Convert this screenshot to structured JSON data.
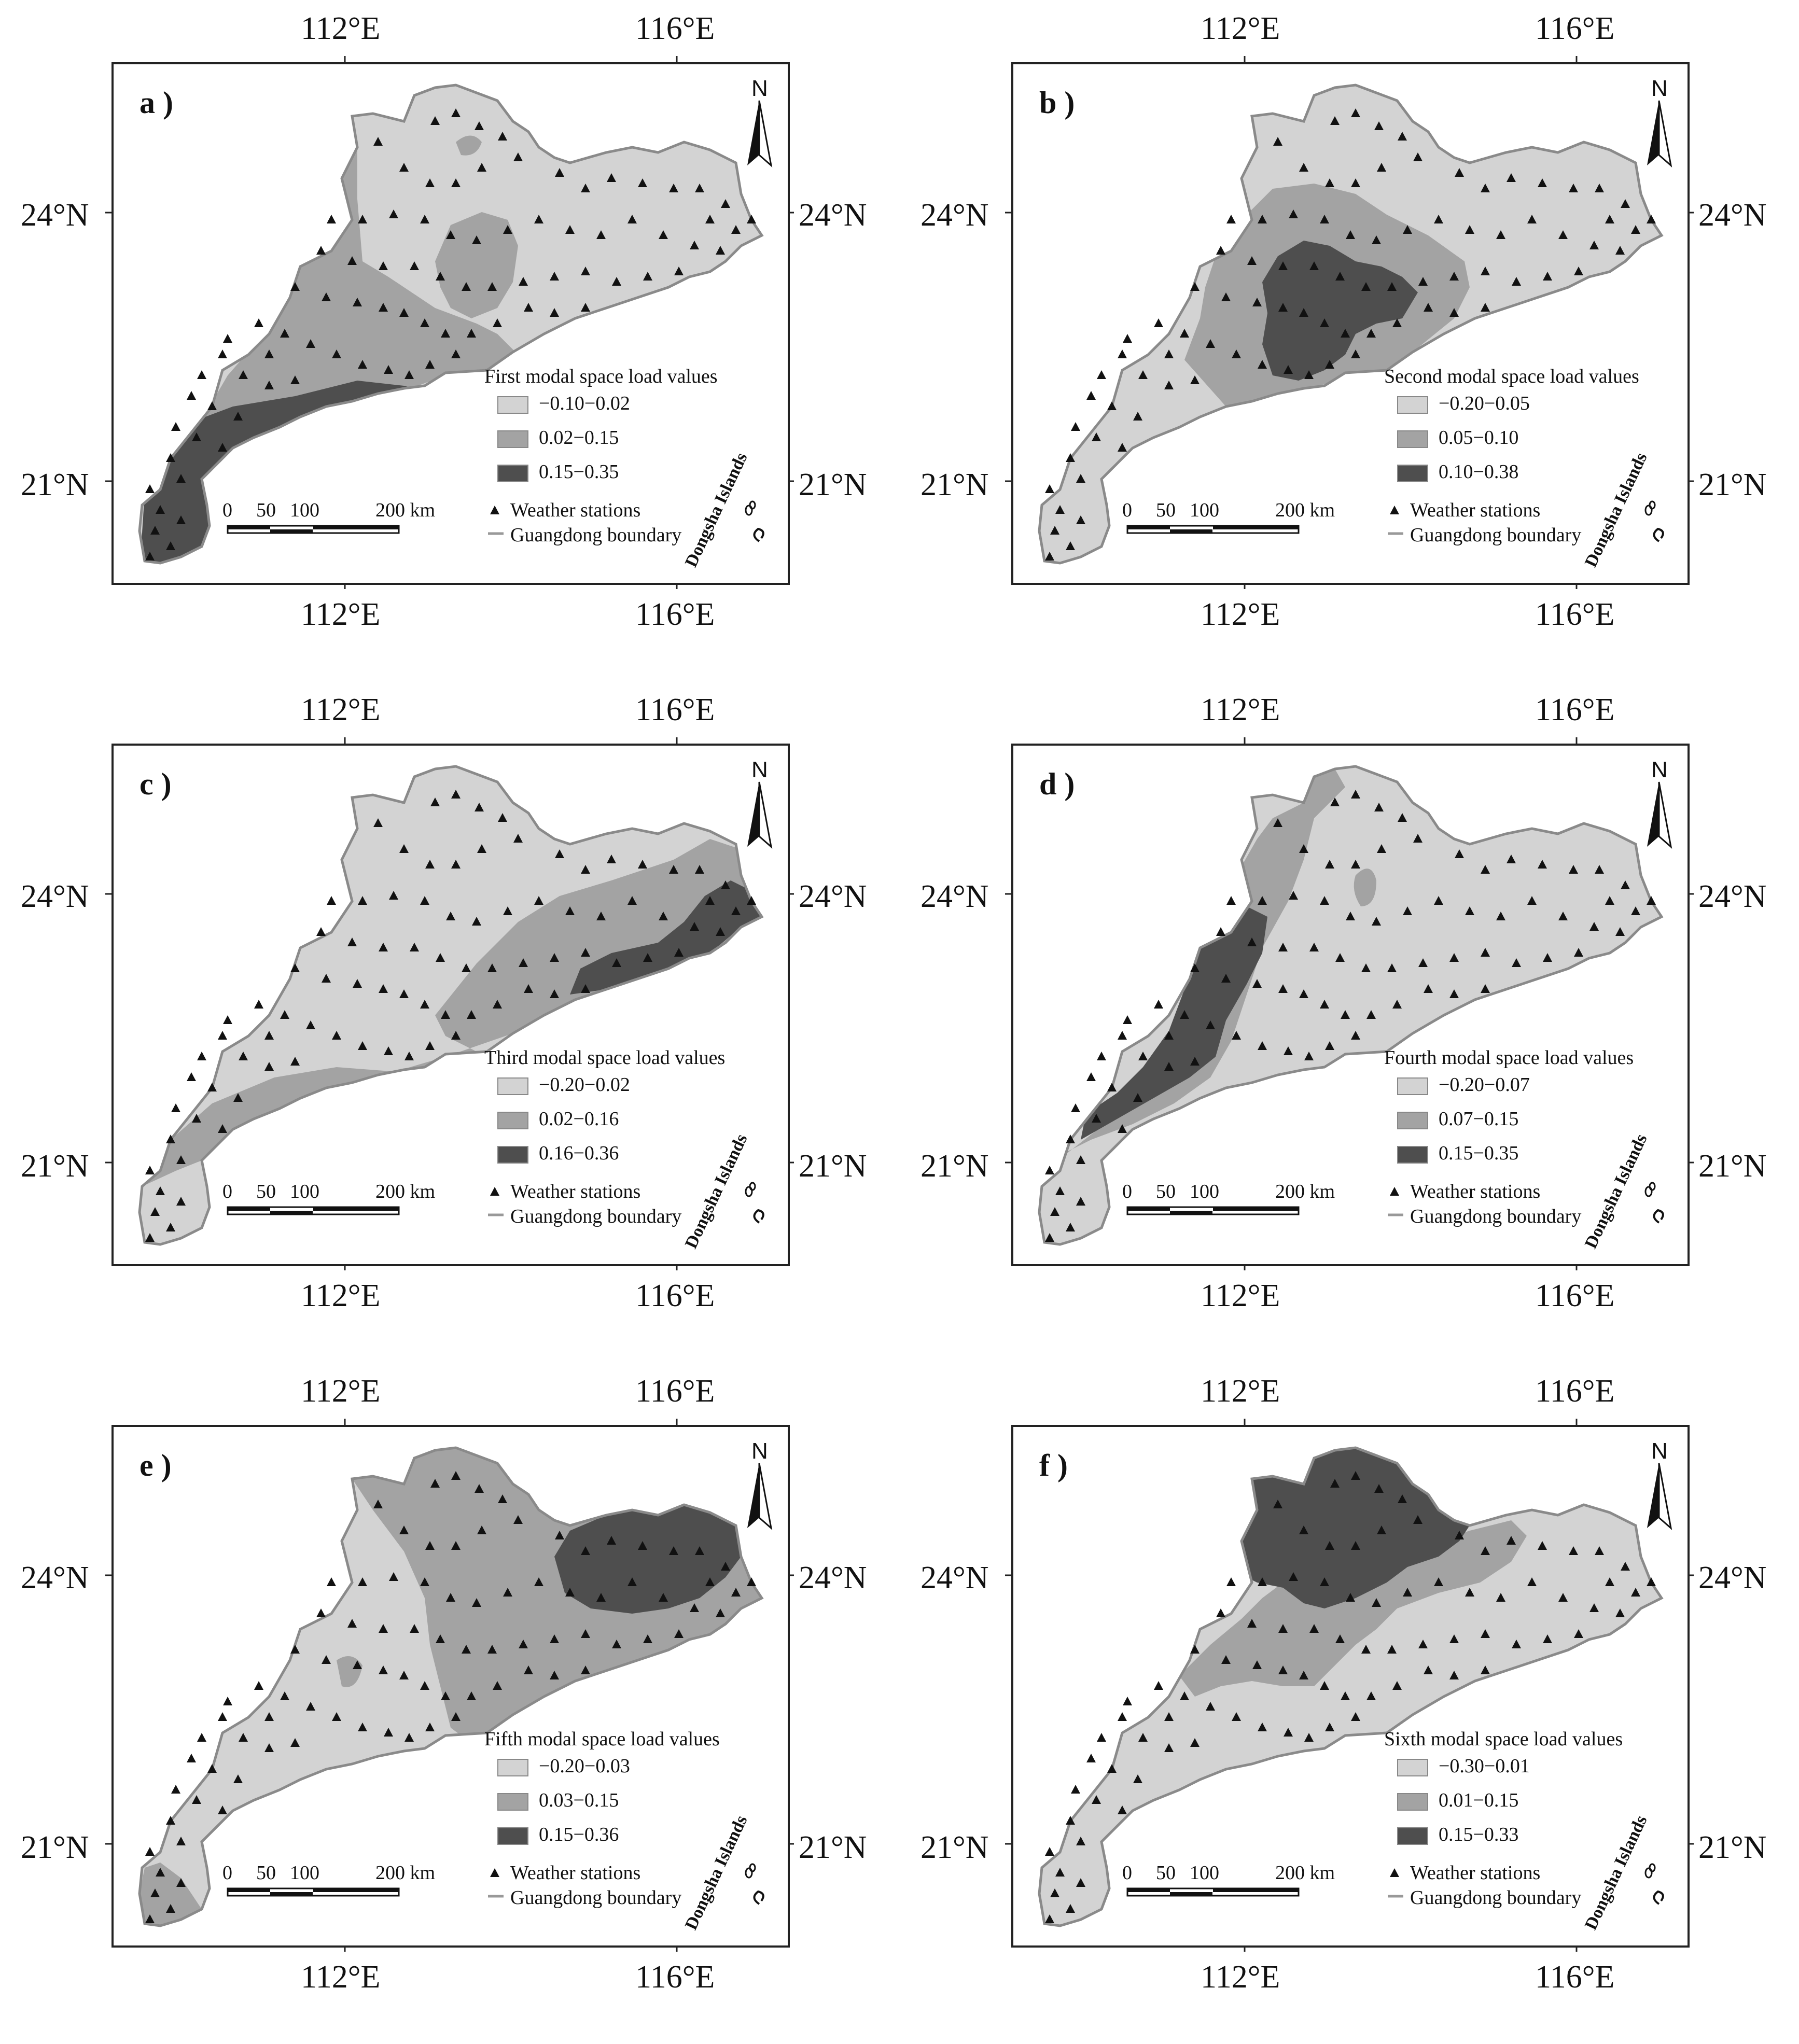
{
  "ticks": {
    "lon1": "112°E",
    "lon2": "116°E",
    "lat_top": "24°N",
    "lat_bottom": "21°N"
  },
  "common": {
    "north_label": "N",
    "scale_0": "0",
    "scale_50": "50",
    "scale_100": "100",
    "scale_200": "200 km",
    "stations_label": "Weather stations",
    "boundary_label": "Guangdong boundary",
    "islands_label": "Dongsha Islands"
  },
  "colors": {
    "low": "#d3d3d3",
    "mid": "#a3a3a3",
    "high": "#4e4e4e",
    "land_outline": "#8a8a8a"
  },
  "panels": [
    {
      "id": "a",
      "label": "a )",
      "legend_title": "First modal space load values",
      "classes": [
        "−0.10−0.02",
        "0.02−0.15",
        "0.15−0.35"
      ]
    },
    {
      "id": "b",
      "label": "b )",
      "legend_title": "Second modal space load values",
      "classes": [
        "−0.20−0.05",
        "0.05−0.10",
        "0.10−0.38"
      ]
    },
    {
      "id": "c",
      "label": "c )",
      "legend_title": "Third modal space load values",
      "classes": [
        "−0.20−0.02",
        "0.02−0.16",
        "0.16−0.36"
      ]
    },
    {
      "id": "d",
      "label": "d )",
      "legend_title": "Fourth modal space load values",
      "classes": [
        "−0.20−0.07",
        "0.07−0.15",
        "0.15−0.35"
      ]
    },
    {
      "id": "e",
      "label": "e )",
      "legend_title": "Fifth modal space load values",
      "classes": [
        "−0.20−0.03",
        "0.03−0.15",
        "0.15−0.36"
      ]
    },
    {
      "id": "f",
      "label": "f )",
      "legend_title": "Sixth modal space load values",
      "classes": [
        "−0.30−0.01",
        "0.01−0.15",
        "0.15−0.33"
      ]
    }
  ]
}
